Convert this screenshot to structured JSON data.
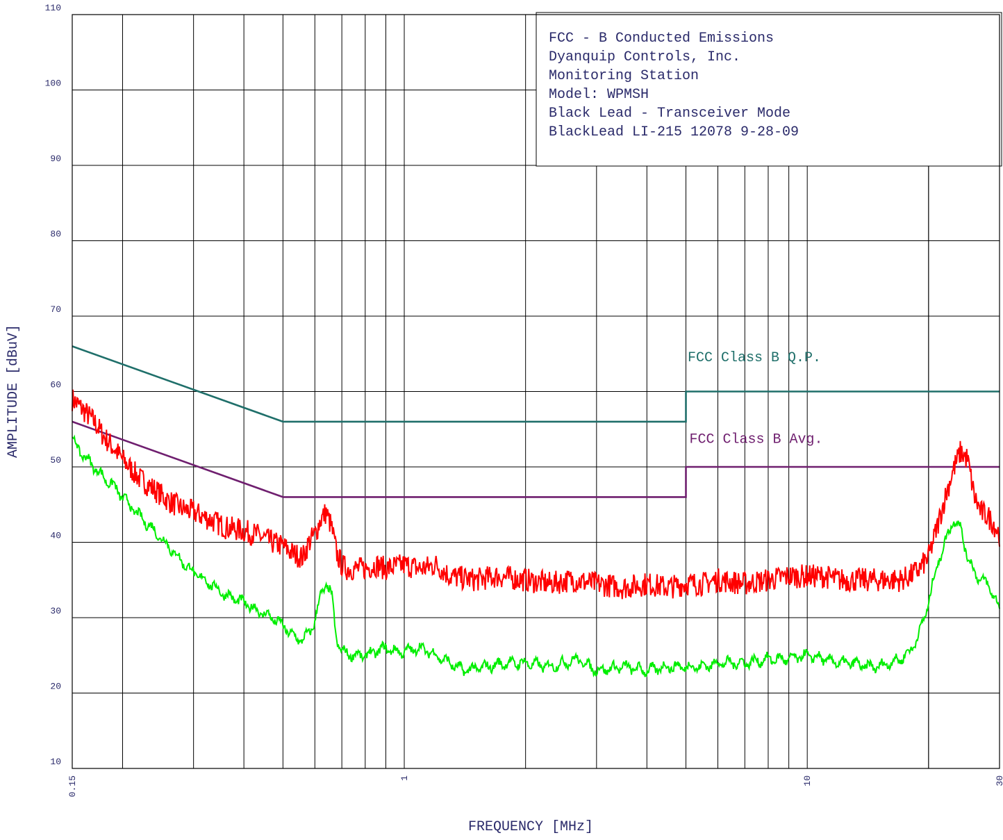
{
  "chart_data": {
    "type": "line",
    "xscale": "log",
    "xlim": [
      0.15,
      30
    ],
    "ylim": [
      10,
      110
    ],
    "xlabel": "FREQUENCY [MHz]",
    "ylabel": "AMPLITUDE [dBuV]",
    "grid": true,
    "xticks": [
      0.15,
      1,
      10,
      30
    ],
    "xtick_labels": [
      "0.15",
      "1",
      "10",
      "30"
    ],
    "yticks": [
      10,
      20,
      30,
      40,
      50,
      60,
      70,
      80,
      90,
      100,
      110
    ],
    "ytick_labels": [
      "10",
      "20",
      "30",
      "40",
      "50",
      "60",
      "70",
      "80",
      "90",
      "100",
      "110"
    ],
    "info_box": [
      "FCC - B Conducted Emissions",
      "Dyanquip Controls, Inc.",
      "Monitoring Station",
      "Model: WPMSH",
      "Black Lead - Transceiver Mode",
      "BlackLead LI-215 12078 9-28-09"
    ],
    "series": [
      {
        "name": "FCC Class B Q.P.",
        "color": "#1f6f6a",
        "label_at": [
          5.05,
          64
        ],
        "x": [
          0.15,
          0.5,
          5,
          5,
          30
        ],
        "y": [
          66,
          56,
          56,
          60,
          60
        ]
      },
      {
        "name": "FCC Class B Avg.",
        "color": "#6f1f6f",
        "label_at": [
          5.1,
          53.2
        ],
        "x": [
          0.15,
          0.5,
          5,
          5,
          30
        ],
        "y": [
          56,
          46,
          46,
          50,
          50
        ]
      },
      {
        "color": "#ff0000",
        "x": [
          0.15,
          0.16,
          0.17,
          0.18,
          0.19,
          0.2,
          0.22,
          0.24,
          0.26,
          0.28,
          0.3,
          0.33,
          0.36,
          0.4,
          0.43,
          0.47,
          0.5,
          0.53,
          0.56,
          0.58,
          0.6,
          0.62,
          0.64,
          0.66,
          0.68,
          0.7,
          0.72,
          0.75,
          0.8,
          0.85,
          0.9,
          1.0,
          1.1,
          1.2,
          1.3,
          1.5,
          1.7,
          2.0,
          2.3,
          2.6,
          3.0,
          3.5,
          4.0,
          4.5,
          5.0,
          5.5,
          6.0,
          7.0,
          8.0,
          9.0,
          10.0,
          11,
          12,
          13,
          14,
          15,
          16,
          17,
          18,
          19,
          20,
          21,
          22,
          23,
          24,
          25,
          26,
          27,
          28,
          29,
          30
        ],
        "y": [
          59,
          57.5,
          56,
          54,
          52.5,
          51,
          48.5,
          47,
          45.5,
          44.5,
          44,
          43,
          42,
          41.5,
          41,
          40,
          39.5,
          38.5,
          38,
          40,
          41,
          43,
          44,
          42,
          38.5,
          37,
          36.5,
          36.5,
          36.5,
          37,
          36.5,
          37,
          36.5,
          37,
          35.5,
          35,
          35.5,
          35,
          34.5,
          35,
          34.5,
          34,
          34.5,
          34,
          34.5,
          34.5,
          35,
          34.5,
          35,
          35.5,
          35.5,
          35.5,
          35,
          35,
          35,
          35,
          35,
          35,
          35.5,
          36.5,
          38,
          42,
          46,
          49.5,
          52,
          51,
          46,
          44,
          43.5,
          42.5,
          41
        ]
      },
      {
        "color": "#00ee00",
        "x": [
          0.15,
          0.16,
          0.17,
          0.18,
          0.19,
          0.2,
          0.22,
          0.24,
          0.26,
          0.28,
          0.3,
          0.33,
          0.36,
          0.4,
          0.43,
          0.47,
          0.5,
          0.53,
          0.56,
          0.58,
          0.6,
          0.62,
          0.64,
          0.66,
          0.68,
          0.7,
          0.75,
          0.8,
          0.85,
          0.9,
          0.95,
          1.0,
          1.1,
          1.2,
          1.4,
          1.6,
          1.8,
          2.0,
          2.3,
          2.7,
          3.0,
          3.5,
          4.0,
          4.5,
          5.0,
          5.5,
          6.0,
          7.0,
          8.0,
          9.0,
          10.0,
          11,
          12,
          13,
          14,
          15,
          16,
          17,
          18,
          19,
          20,
          21,
          22,
          23,
          24,
          25,
          26,
          27,
          28,
          29,
          30
        ],
        "y": [
          53.5,
          51.5,
          50,
          48.5,
          47.5,
          46,
          43.5,
          41.5,
          39.5,
          37.5,
          36,
          34.5,
          33,
          32,
          31,
          30,
          29,
          27.5,
          27,
          28,
          29.5,
          33,
          34.5,
          33,
          27,
          25.5,
          25,
          25,
          25.5,
          26,
          25.5,
          25.5,
          26,
          25,
          23,
          23.5,
          24,
          24,
          23.5,
          24.5,
          23,
          23.5,
          23,
          23.5,
          23.5,
          23.5,
          24,
          24,
          24.5,
          24.5,
          25,
          24.5,
          24,
          24,
          23.5,
          23.5,
          24,
          24.5,
          25.5,
          28,
          32,
          37,
          40,
          43,
          42,
          38,
          36,
          35,
          34.5,
          33,
          31
        ]
      }
    ]
  }
}
